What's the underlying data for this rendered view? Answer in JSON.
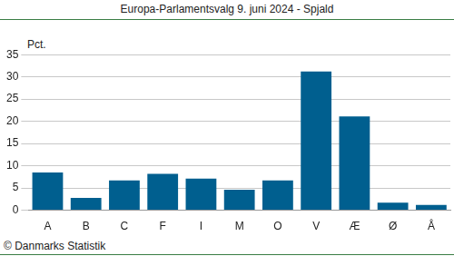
{
  "chart_data": {
    "type": "bar",
    "title": "Europa-Parlamentsvalg 9. juni 2024 - Spjald",
    "ylabel": "Pct.",
    "source": "© Danmarks Statistik",
    "categories": [
      "A",
      "B",
      "C",
      "F",
      "I",
      "M",
      "O",
      "V",
      "Æ",
      "Ø",
      "Å"
    ],
    "values": [
      8.5,
      2.8,
      6.7,
      8.2,
      7.1,
      4.6,
      6.7,
      31.2,
      21.1,
      1.7,
      1.2
    ],
    "color": "#005f8f",
    "ylim": [
      0,
      35
    ],
    "yticks": [
      0,
      5,
      10,
      15,
      20,
      25,
      30,
      35
    ],
    "grid": true
  }
}
